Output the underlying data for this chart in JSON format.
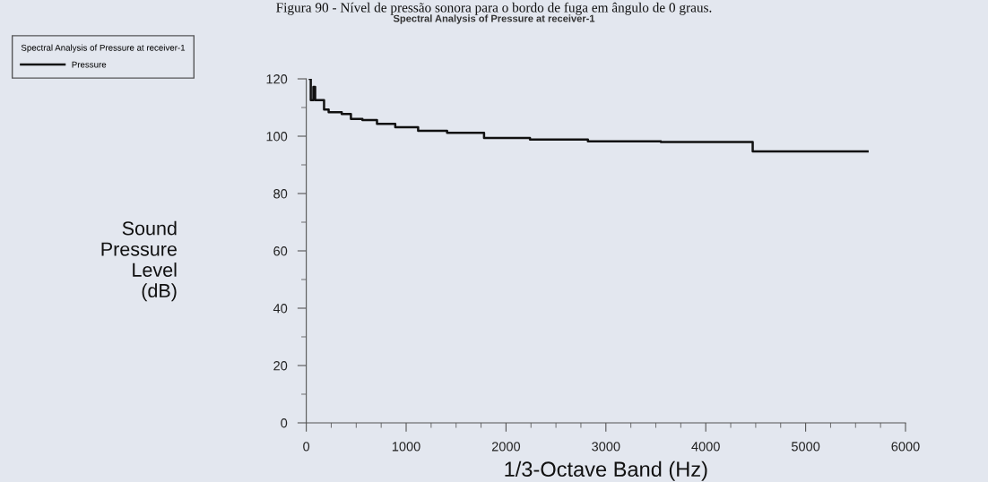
{
  "chart_data": {
    "type": "step",
    "title": "Spectral Analysis of Pressure at receiver-1",
    "annotations": [
      "Figura 90 - Nível de pressão sonora para o bordo de fuga em ângulo de 0 graus."
    ],
    "xlabel": "1/3-Octave Band (Hz)",
    "ylabel": "Sound\nPressure\nLevel\n(dB)",
    "legend_title": "Spectral Analysis of Pressure at receiver-1",
    "x": [
      35,
      45,
      71,
      89,
      178,
      224,
      355,
      447,
      562,
      708,
      891,
      1120,
      1410,
      1780,
      2240,
      2820,
      3550,
      4470,
      5620
    ],
    "series": [
      {
        "name": "Pressure",
        "color": "#111111",
        "values": [
          120,
          112.6,
          117.2,
          112.6,
          109.3,
          108.4,
          107.7,
          106.0,
          105.6,
          104.3,
          103.1,
          101.9,
          101.2,
          99.4,
          98.8,
          98.2,
          98.0,
          94.7,
          94.7
        ]
      }
    ],
    "xlim": [
      0,
      6000
    ],
    "xticks": [
      0,
      1000,
      2000,
      3000,
      4000,
      5000,
      6000
    ],
    "ylim": [
      0,
      120
    ],
    "yticks": [
      0,
      20,
      40,
      60,
      80,
      100,
      120
    ],
    "grid": false,
    "legend": "top left",
    "line_style": "solid",
    "marker": "none"
  }
}
